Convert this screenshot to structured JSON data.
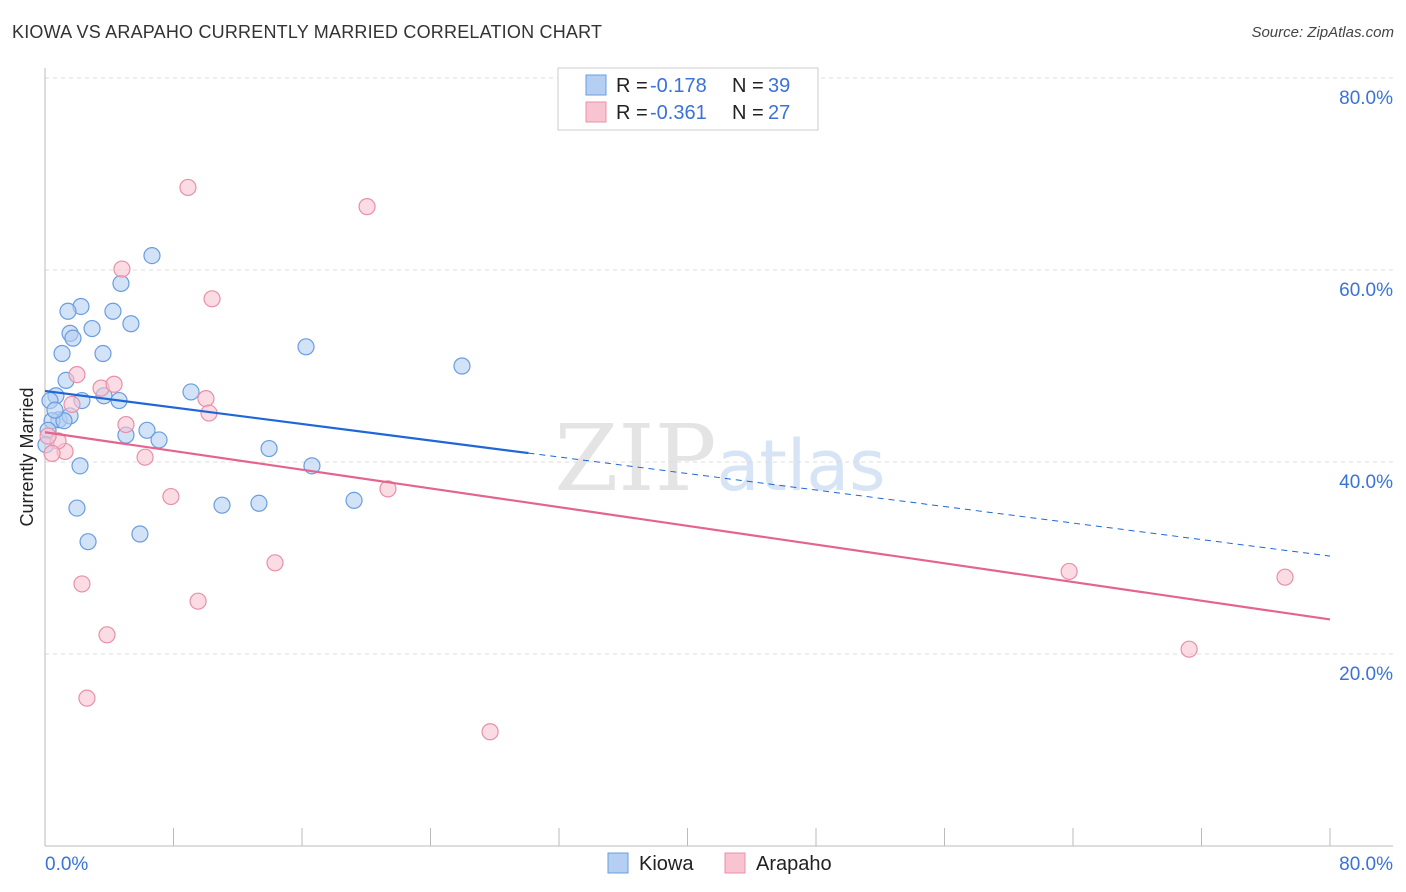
{
  "title": "KIOWA VS ARAPAHO CURRENTLY MARRIED CORRELATION CHART",
  "source": "Source: ZipAtlas.com",
  "chart_data": {
    "type": "scatter",
    "title": "KIOWA VS ARAPAHO CURRENTLY MARRIED CORRELATION CHART",
    "xlabel": "",
    "ylabel": "Currently Married",
    "xlim": [
      0,
      80
    ],
    "ylim": [
      0,
      80
    ],
    "x_tick_labels": [
      "0.0%",
      "80.0%"
    ],
    "y_ticks": [
      20,
      40,
      60,
      80
    ],
    "y_tick_labels": [
      "20.0%",
      "40.0%",
      "60.0%",
      "80.0%"
    ],
    "grid": true,
    "legend_placement": "top-center",
    "series": [
      {
        "name": "Kiowa",
        "color": "#6a9de0",
        "fill": "#b4cff2",
        "line_color": "#1f66d6",
        "R": "-0.178",
        "N": "39",
        "trend": {
          "x": [
            0,
            80
          ],
          "y": [
            47.4,
            30.2
          ],
          "solid_until_x": 30.1
        },
        "points": [
          [
            6.66,
            61.5
          ],
          [
            4.73,
            58.6
          ],
          [
            2.24,
            56.2
          ],
          [
            1.43,
            55.7
          ],
          [
            4.23,
            55.7
          ],
          [
            5.35,
            54.4
          ],
          [
            2.93,
            53.9
          ],
          [
            1.56,
            53.4
          ],
          [
            1.74,
            52.9
          ],
          [
            1.06,
            51.3
          ],
          [
            3.61,
            51.3
          ],
          [
            16.25,
            52.0
          ],
          [
            25.96,
            50.0
          ],
          [
            1.31,
            48.5
          ],
          [
            9.09,
            47.3
          ],
          [
            3.67,
            46.9
          ],
          [
            2.3,
            46.4
          ],
          [
            4.61,
            46.4
          ],
          [
            0.68,
            46.9
          ],
          [
            0.31,
            46.4
          ],
          [
            0.87,
            44.4
          ],
          [
            1.56,
            44.8
          ],
          [
            0.44,
            44.3
          ],
          [
            1.18,
            44.3
          ],
          [
            5.04,
            42.8
          ],
          [
            6.35,
            43.3
          ],
          [
            7.1,
            42.3
          ],
          [
            13.95,
            41.4
          ],
          [
            2.18,
            39.6
          ],
          [
            16.62,
            39.6
          ],
          [
            1.99,
            35.2
          ],
          [
            11.02,
            35.5
          ],
          [
            13.32,
            35.7
          ],
          [
            19.24,
            36.0
          ],
          [
            2.68,
            31.7
          ],
          [
            5.91,
            32.5
          ],
          [
            0.19,
            43.3
          ],
          [
            0.62,
            45.4
          ],
          [
            0.06,
            41.8
          ]
        ]
      },
      {
        "name": "Arapaho",
        "color": "#e890a8",
        "fill": "#f8c4d2",
        "line_color": "#e3648f",
        "R": "-0.361",
        "N": "27",
        "trend": {
          "x": [
            0,
            80
          ],
          "y": [
            43.1,
            23.6
          ],
          "solid_until_x": 80
        },
        "points": [
          [
            8.9,
            68.6
          ],
          [
            20.05,
            66.6
          ],
          [
            4.79,
            60.1
          ],
          [
            10.4,
            57.0
          ],
          [
            1.99,
            49.1
          ],
          [
            3.49,
            47.7
          ],
          [
            4.3,
            48.1
          ],
          [
            10.02,
            46.6
          ],
          [
            10.21,
            45.1
          ],
          [
            1.68,
            46.0
          ],
          [
            5.04,
            43.9
          ],
          [
            6.23,
            40.5
          ],
          [
            1.25,
            41.1
          ],
          [
            0.81,
            42.2
          ],
          [
            0.44,
            40.9
          ],
          [
            7.84,
            36.4
          ],
          [
            21.35,
            37.2
          ],
          [
            2.3,
            27.3
          ],
          [
            14.32,
            29.5
          ],
          [
            9.53,
            25.5
          ],
          [
            3.86,
            22.0
          ],
          [
            2.61,
            15.4
          ],
          [
            27.71,
            11.9
          ],
          [
            63.76,
            28.6
          ],
          [
            77.2,
            28.0
          ],
          [
            71.23,
            20.5
          ],
          [
            0.19,
            42.7
          ]
        ]
      }
    ],
    "legend": {
      "r_label": "R = ",
      "n_label": "N = "
    },
    "watermark": "ZIPatlas"
  }
}
